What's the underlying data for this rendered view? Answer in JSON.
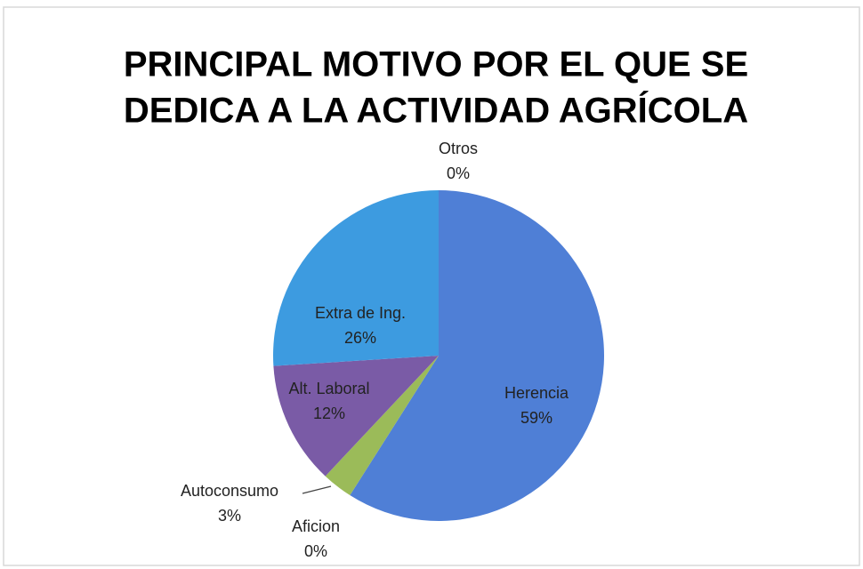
{
  "chart_data": {
    "type": "pie",
    "title": [
      "PRINCIPAL MOTIVO POR EL QUE SE",
      "DEDICA A LA ACTIVIDAD AGRÍCOLA"
    ],
    "categories": [
      "Herencia",
      "Aficion",
      "Autoconsumo",
      "Alt. Laboral",
      "Extra de Ing.",
      "Otros"
    ],
    "values": [
      59,
      0,
      3,
      12,
      26,
      0
    ],
    "value_labels": [
      "59%",
      "0%",
      "3%",
      "12%",
      "26%",
      "0%"
    ],
    "colors": [
      "#4f7fd6",
      "#c0504d",
      "#9bbb59",
      "#7a5ba6",
      "#3d9be0",
      "#f79646"
    ]
  }
}
